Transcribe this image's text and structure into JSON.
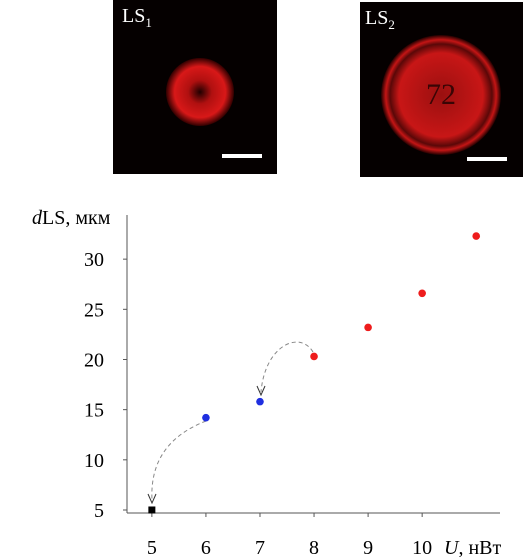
{
  "images": [
    {
      "label": "LS",
      "subscript": "1"
    },
    {
      "label": "LS",
      "subscript": "2",
      "inner_text": "72"
    }
  ],
  "chart_data": {
    "type": "scatter",
    "y_label": [
      "d",
      "LS, мкм"
    ],
    "x_label": [
      "U",
      ", нВт"
    ],
    "x": [
      5,
      6,
      7,
      8,
      9,
      10,
      11
    ],
    "values": [
      5,
      14.2,
      15.8,
      20.3,
      23.2,
      26.6,
      32.3
    ],
    "colors": [
      "#000000",
      "#1f2fe0",
      "#1f2fe0",
      "#ee1c1c",
      "#ee1c1c",
      "#ee1c1c",
      "#ee1c1c"
    ],
    "xlim": [
      4.54,
      11.44
    ],
    "ylim": [
      4.7,
      34.4
    ],
    "xticks": [
      5,
      6,
      7,
      8,
      9,
      10
    ],
    "yticks": [
      5,
      10,
      15,
      20,
      25,
      30
    ]
  }
}
